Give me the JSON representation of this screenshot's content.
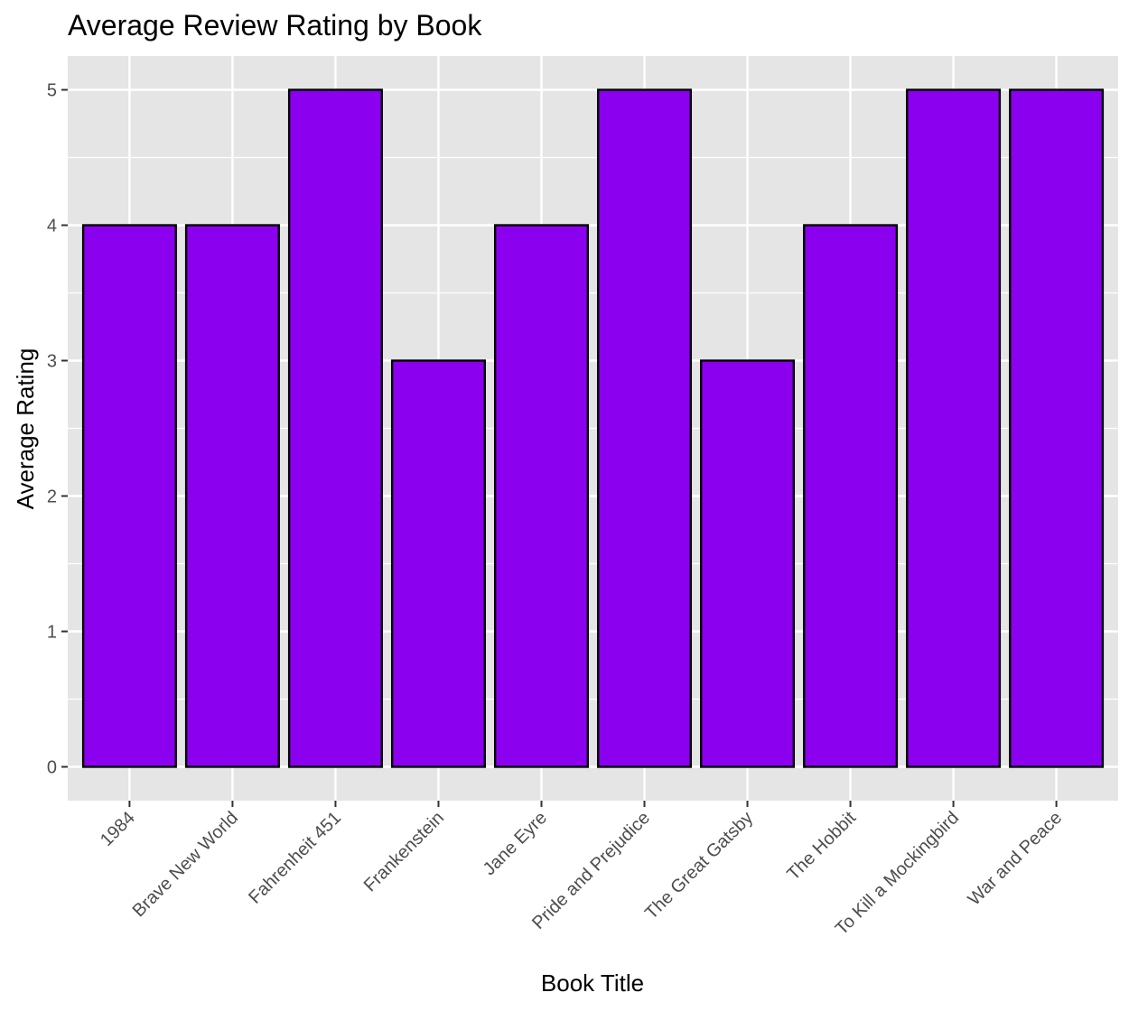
{
  "chart_data": {
    "type": "bar",
    "title": "Average Review Rating by Book",
    "xlabel": "Book Title",
    "ylabel": "Average Rating",
    "categories": [
      "1984",
      "Brave New World",
      "Fahrenheit 451",
      "Frankenstein",
      "Jane Eyre",
      "Pride and Prejudice",
      "The Great Gatsby",
      "The Hobbit",
      "To Kill a Mockingbird",
      "War and Peace"
    ],
    "values": [
      4,
      4,
      5,
      3,
      4,
      5,
      3,
      4,
      5,
      5
    ],
    "ylim": [
      -0.25,
      5.25
    ],
    "yticks": [
      0,
      1,
      2,
      3,
      4,
      5
    ],
    "grid": true,
    "legend": "none",
    "colors": {
      "bar_fill": "#8B00EE",
      "bar_stroke": "#000000",
      "panel_bg": "#E5E5E5",
      "grid": "#FFFFFF",
      "tick_text": "#4D4D4D",
      "tick_mark": "#333333"
    }
  }
}
